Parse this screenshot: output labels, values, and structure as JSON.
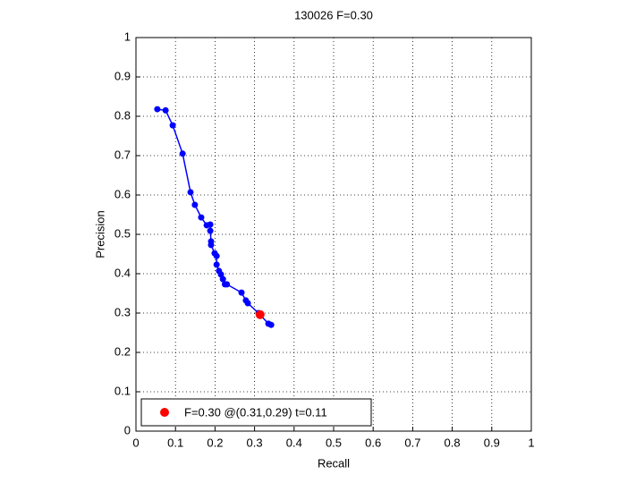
{
  "chart_data": {
    "type": "line",
    "title": "130026 F=0.30",
    "xlabel": "Recall",
    "ylabel": "Precision",
    "xlim": [
      0,
      1
    ],
    "ylim": [
      0,
      1
    ],
    "xticks": [
      0,
      0.1,
      0.2,
      0.3,
      0.4,
      0.5,
      0.6,
      0.7,
      0.8,
      0.9,
      1
    ],
    "yticks": [
      0,
      0.1,
      0.2,
      0.3,
      0.4,
      0.5,
      0.6,
      0.7,
      0.8,
      0.9,
      1
    ],
    "grid": true,
    "legend": "lower left",
    "series": [
      {
        "color": "#0000ff",
        "style": "line-marker",
        "x": [
          0.054,
          0.075,
          0.093,
          0.118,
          0.138,
          0.149,
          0.165,
          0.179,
          0.188,
          0.188,
          0.19,
          0.19,
          0.199,
          0.204,
          0.204,
          0.21,
          0.215,
          0.22,
          0.225,
          0.23,
          0.267,
          0.278,
          0.283,
          0.31,
          0.335,
          0.342
        ],
        "values": [
          0.818,
          0.815,
          0.777,
          0.705,
          0.607,
          0.575,
          0.543,
          0.523,
          0.525,
          0.509,
          0.482,
          0.473,
          0.452,
          0.445,
          0.423,
          0.407,
          0.398,
          0.386,
          0.373,
          0.373,
          0.352,
          0.332,
          0.325,
          0.3,
          0.273,
          0.27
        ]
      },
      {
        "name": "F=0.30 @(0.31,0.29) t=0.11",
        "color": "#ff0000",
        "style": "marker",
        "x": [
          0.314
        ],
        "values": [
          0.296
        ]
      }
    ]
  }
}
